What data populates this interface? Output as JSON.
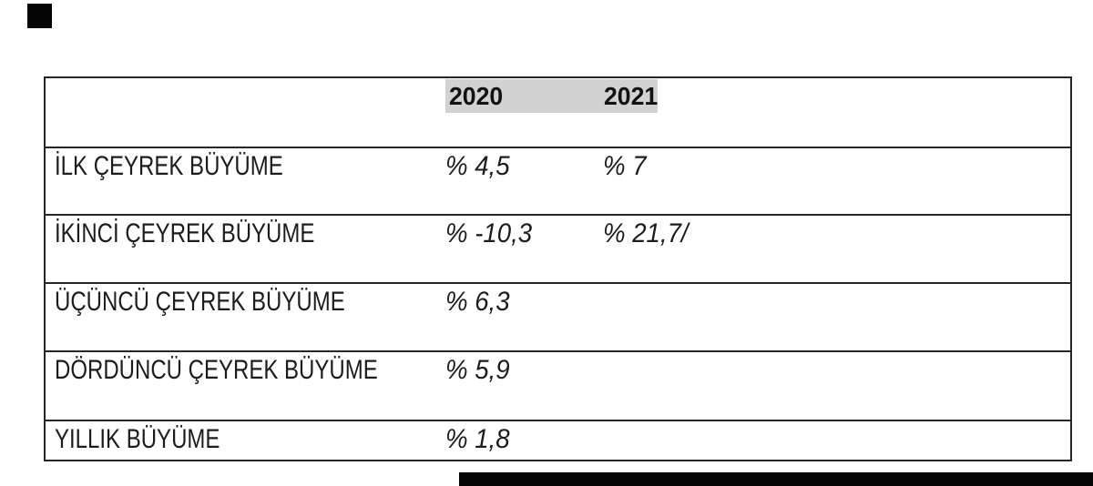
{
  "colors": {
    "line": "#262626",
    "highlight": "#d2d2d2",
    "artifact": "#050505",
    "text": "#1c1c1c"
  },
  "artifacts": {
    "top_left_square": "black scan mark",
    "bottom_bar": "black scan mark"
  },
  "table": {
    "header": {
      "col_2020": "2020",
      "col_2021": "2021"
    },
    "rows": [
      {
        "label": "İLK ÇEYREK BÜYÜME",
        "v2020": "% 4,5",
        "v2021": "% 7"
      },
      {
        "label": "İKİNCİ ÇEYREK BÜYÜME",
        "v2020": "% -10,3",
        "v2021": "% 21,7/"
      },
      {
        "label": "ÜÇÜNCÜ ÇEYREK BÜYÜME",
        "v2020": "% 6,3",
        "v2021": ""
      },
      {
        "label": "DÖRDÜNCÜ ÇEYREK BÜYÜME",
        "v2020": "% 5,9",
        "v2021": ""
      },
      {
        "label": "YILLIK BÜYÜME",
        "v2020": "% 1,8",
        "v2021": ""
      }
    ]
  },
  "chart_data": {
    "type": "table",
    "title": "",
    "columns": [
      "",
      "2020",
      "2021"
    ],
    "rows": [
      [
        "İLK ÇEYREK BÜYÜME",
        "% 4,5",
        "% 7"
      ],
      [
        "İKİNCİ ÇEYREK BÜYÜME",
        "% -10,3",
        "% 21,7"
      ],
      [
        "ÜÇÜNCÜ ÇEYREK BÜYÜME",
        "% 6,3",
        ""
      ],
      [
        "DÖRDÜNCÜ ÇEYREK BÜYÜME",
        "% 5,9",
        ""
      ],
      [
        "YILLIK BÜYÜME",
        "% 1,8",
        ""
      ]
    ],
    "values_numeric": {
      "2020": {
        "q1": 4.5,
        "q2": -10.3,
        "q3": 6.3,
        "q4": 5.9,
        "annual": 1.8
      },
      "2021": {
        "q1": 7,
        "q2": 21.7,
        "q3": null,
        "q4": null,
        "annual": null
      }
    },
    "layout_hints": {
      "header_highlight": "continuous gray band behind 2020 and 2021",
      "value_style": "italic",
      "grid": "horizontal row lines only, outer border"
    }
  }
}
